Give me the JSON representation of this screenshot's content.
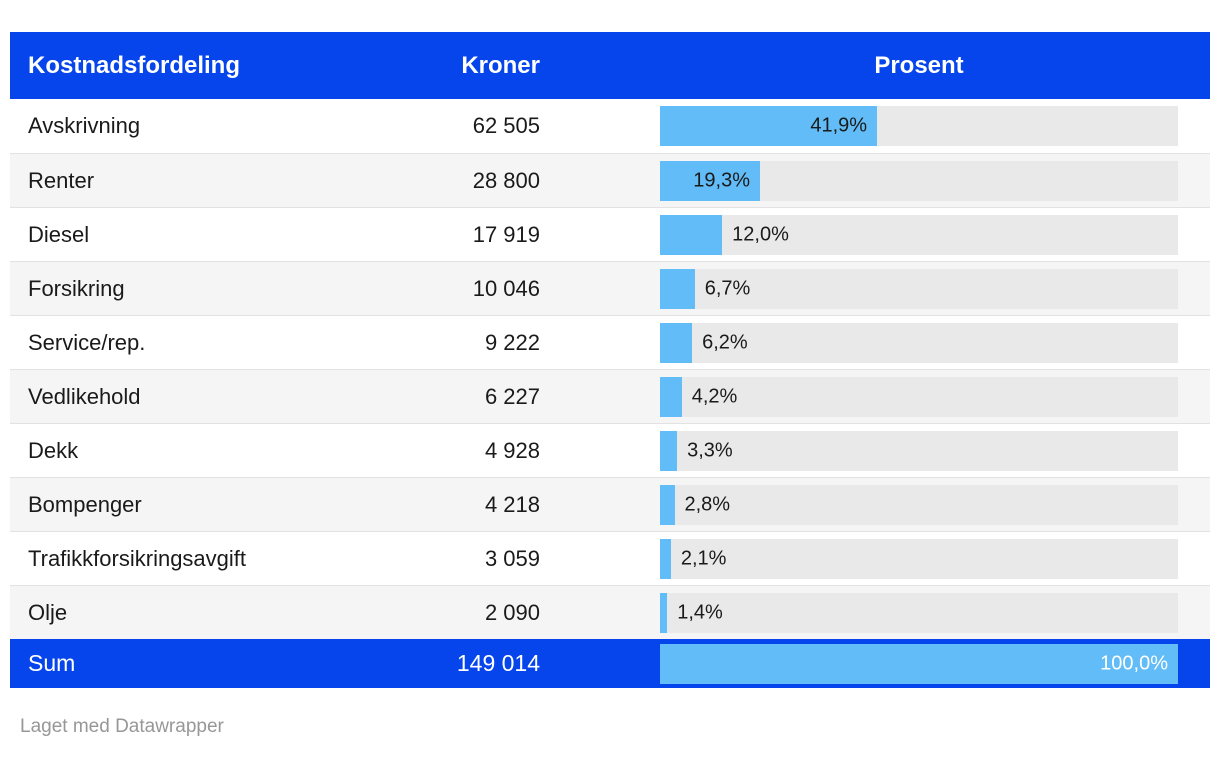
{
  "title": "Kostnadsfordeling",
  "header": {
    "col_cost": "Kostnadsfordeling",
    "col_kroner": "Kroner",
    "col_prosent": "Prosent"
  },
  "chart_data": {
    "type": "bar",
    "title": "Kostnadsfordeling",
    "xlabel": "Prosent",
    "ylabel": "Kostnadsfordeling",
    "xlim": [
      0,
      100
    ],
    "columns": [
      "Kostnadsfordeling",
      "Kroner",
      "Prosent"
    ],
    "rows": [
      {
        "label": "Avskrivning",
        "kroner": "62 505",
        "percent": 41.9,
        "percent_label": "41,9%",
        "label_inside": true
      },
      {
        "label": "Renter",
        "kroner": "28 800",
        "percent": 19.3,
        "percent_label": "19,3%",
        "label_inside": true
      },
      {
        "label": "Diesel",
        "kroner": "17 919",
        "percent": 12.0,
        "percent_label": "12,0%",
        "label_inside": false
      },
      {
        "label": "Forsikring",
        "kroner": "10 046",
        "percent": 6.7,
        "percent_label": "6,7%",
        "label_inside": false
      },
      {
        "label": "Service/rep.",
        "kroner": "9 222",
        "percent": 6.2,
        "percent_label": "6,2%",
        "label_inside": false
      },
      {
        "label": "Vedlikehold",
        "kroner": "6 227",
        "percent": 4.2,
        "percent_label": "4,2%",
        "label_inside": false
      },
      {
        "label": "Dekk",
        "kroner": "4 928",
        "percent": 3.3,
        "percent_label": "3,3%",
        "label_inside": false
      },
      {
        "label": "Bompenger",
        "kroner": "4 218",
        "percent": 2.8,
        "percent_label": "2,8%",
        "label_inside": false
      },
      {
        "label": "Trafikkforsikringsavgift",
        "kroner": "3 059",
        "percent": 2.1,
        "percent_label": "2,1%",
        "label_inside": false
      },
      {
        "label": "Olje",
        "kroner": "2 090",
        "percent": 1.4,
        "percent_label": "1,4%",
        "label_inside": false
      }
    ],
    "sum_row": {
      "label": "Sum",
      "kroner": "149 014",
      "percent": 100.0,
      "percent_label": "100,0%",
      "label_inside": true
    }
  },
  "footer": {
    "credit": "Laget med Datawrapper"
  },
  "colors": {
    "header_bg": "#0645ec",
    "bar": "#62bcf7",
    "track": "#e9e9e9",
    "stripe": "#f5f5f5",
    "text": "#1a1a1a",
    "credit": "#979797"
  }
}
